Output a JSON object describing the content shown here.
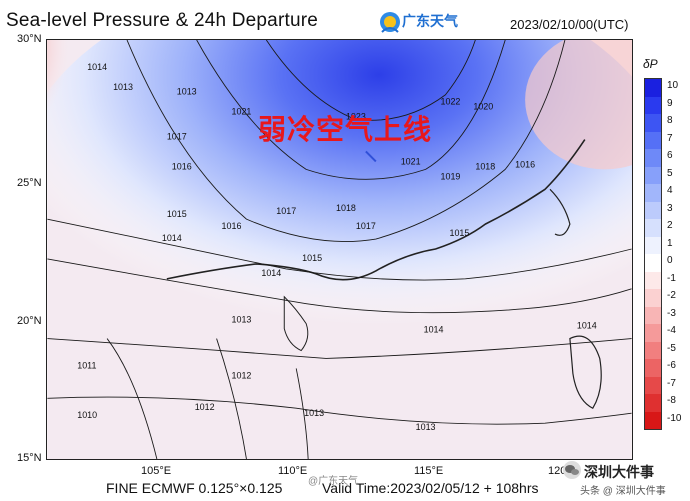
{
  "header": {
    "title": "Sea-level Pressure & 24h Departure",
    "logo_text": "广东天气",
    "datetime": "2023/02/10/00(UTC)"
  },
  "overlay": {
    "headline": "弱冷空气上线"
  },
  "axes": {
    "lat_labels": [
      "30°N",
      "25°N",
      "20°N",
      "15°N"
    ],
    "lon_labels": [
      "105°E",
      "110°E",
      "115°E",
      "120°E"
    ]
  },
  "legend": {
    "symbol": "δP",
    "levels": [
      "10",
      "9",
      "8",
      "7",
      "6",
      "5",
      "4",
      "3",
      "2",
      "1",
      "0",
      "-1",
      "-2",
      "-3",
      "-4",
      "-5",
      "-6",
      "-7",
      "-8",
      "-10"
    ],
    "colors": [
      "#1a20e0",
      "#2a3aef",
      "#3d55f3",
      "#5570f6",
      "#6e89f8",
      "#87a0fa",
      "#a1b6fb",
      "#bccbfc",
      "#d6e0fd",
      "#eef2fe",
      "#ffffff",
      "#fde9e9",
      "#fbd1d1",
      "#f8b5b5",
      "#f59a9a",
      "#f17f7f",
      "#ec6464",
      "#e64949",
      "#df3030",
      "#d81717"
    ]
  },
  "isobars": [
    {
      "label": "1014"
    },
    {
      "label": "1013"
    },
    {
      "label": "1012"
    },
    {
      "label": "1017"
    },
    {
      "label": "1016"
    },
    {
      "label": "1021"
    },
    {
      "label": "1023"
    },
    {
      "label": "1022"
    },
    {
      "label": "1020"
    },
    {
      "label": "1018"
    },
    {
      "label": "1019"
    },
    {
      "label": "1015"
    },
    {
      "label": "1011"
    },
    {
      "label": "1010"
    }
  ],
  "footer": {
    "left": "FINE ECMWF 0.125°×0.125",
    "right": "Valid Time:2023/02/05/12 + 108hrs"
  },
  "watermarks": {
    "center": "@广东天气",
    "corner_main": "深圳大件事",
    "corner_sub": "头条 @ 深圳大件事"
  }
}
